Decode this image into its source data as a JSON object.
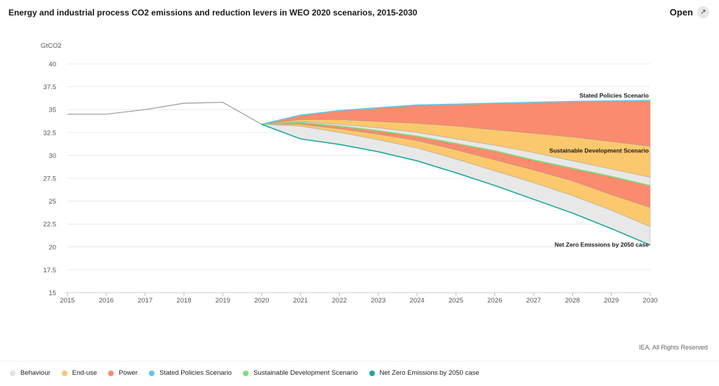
{
  "header": {
    "title": "Energy and industrial process CO2 emissions and reduction levers in WEO 2020 scenarios, 2015-2030",
    "open_label": "Open",
    "open_icon": "external-expand-icon"
  },
  "footer": {
    "copyright": "IEA. All Rights Reserved"
  },
  "chart_data": {
    "type": "area",
    "title": "Energy and industrial process CO2 emissions and reduction levers in WEO 2020 scenarios, 2015-2030",
    "ylabel": "GtCO2",
    "xlabel": "",
    "ylim": [
      15,
      40
    ],
    "yticks": [
      15,
      17.5,
      20,
      22.5,
      25,
      27.5,
      30,
      32.5,
      35,
      37.5,
      40
    ],
    "ytick_labels": [
      "15",
      "17.5",
      "20",
      "22.5",
      "25",
      "27.5",
      "30",
      "32.5",
      "35",
      "37.5",
      "40"
    ],
    "x": [
      2015,
      2016,
      2017,
      2018,
      2019,
      2020,
      2021,
      2022,
      2023,
      2024,
      2025,
      2026,
      2027,
      2028,
      2029,
      2030
    ],
    "x_labels": [
      "2015",
      "2016",
      "2017",
      "2018",
      "2019",
      "2020",
      "2021",
      "2022",
      "2023",
      "2024",
      "2025",
      "2026",
      "2027",
      "2028",
      "2029",
      "2030"
    ],
    "grid": true,
    "legend_position": "bottom",
    "historical": {
      "x": [
        2015,
        2016,
        2017,
        2018,
        2019,
        2020
      ],
      "values": [
        34.5,
        34.5,
        35.0,
        35.7,
        35.8,
        33.4
      ],
      "color": "#999999"
    },
    "series": [
      {
        "name": "Stated Policies Scenario",
        "kind": "line",
        "color": "#5bc8ec",
        "x": [
          2020,
          2021,
          2022,
          2023,
          2024,
          2025,
          2026,
          2027,
          2028,
          2029,
          2030
        ],
        "values": [
          33.4,
          34.4,
          34.9,
          35.2,
          35.5,
          35.6,
          35.7,
          35.8,
          35.9,
          35.95,
          36.0
        ]
      },
      {
        "name": "Sustainable Development Scenario",
        "kind": "line",
        "color": "#7be07b",
        "x": [
          2020,
          2021,
          2022,
          2023,
          2024,
          2025,
          2026,
          2027,
          2028,
          2029,
          2030
        ],
        "values": [
          33.4,
          33.6,
          33.2,
          32.7,
          32.1,
          31.3,
          30.5,
          29.5,
          28.6,
          27.7,
          26.7
        ]
      },
      {
        "name": "Net Zero Emissions by 2050 case",
        "kind": "line",
        "color": "#1aab9b",
        "x": [
          2020,
          2021,
          2022,
          2023,
          2024,
          2025,
          2026,
          2027,
          2028,
          2029,
          2030
        ],
        "values": [
          33.4,
          31.8,
          31.2,
          30.4,
          29.4,
          28.1,
          26.7,
          25.2,
          23.7,
          22.0,
          20.2
        ]
      },
      {
        "name": "Power",
        "kind": "area",
        "color": "#fa8b6e",
        "x": [
          2020,
          2021,
          2022,
          2023,
          2024,
          2025,
          2026,
          2027,
          2028,
          2029,
          2030
        ],
        "upper": [
          33.4,
          34.4,
          34.9,
          35.2,
          35.5,
          35.6,
          35.7,
          35.8,
          35.9,
          35.95,
          36.0
        ],
        "lower": [
          33.4,
          33.9,
          33.9,
          33.7,
          33.5,
          33.2,
          32.8,
          32.4,
          32.0,
          31.5,
          31.0
        ]
      },
      {
        "name": "End-use",
        "kind": "area",
        "color": "#fcc86e",
        "x": [
          2020,
          2021,
          2022,
          2023,
          2024,
          2025,
          2026,
          2027,
          2028,
          2029,
          2030
        ],
        "upper": [
          33.4,
          33.9,
          33.9,
          33.7,
          33.5,
          33.2,
          32.8,
          32.4,
          32.0,
          31.5,
          31.0
        ],
        "lower": [
          33.4,
          33.7,
          33.4,
          33.0,
          32.5,
          31.8,
          31.1,
          30.3,
          29.4,
          28.5,
          27.6
        ]
      },
      {
        "name": "Behaviour",
        "kind": "area",
        "color": "#e8e8e8",
        "x": [
          2020,
          2021,
          2022,
          2023,
          2024,
          2025,
          2026,
          2027,
          2028,
          2029,
          2030
        ],
        "upper": [
          33.4,
          33.7,
          33.4,
          33.0,
          32.5,
          31.8,
          31.1,
          30.3,
          29.4,
          28.5,
          27.6
        ],
        "lower": [
          33.4,
          33.6,
          33.2,
          32.7,
          32.1,
          31.3,
          30.5,
          29.5,
          28.6,
          27.7,
          26.7
        ]
      },
      {
        "name": "Power",
        "kind": "area",
        "color": "#fa8b6e",
        "x": [
          2020,
          2021,
          2022,
          2023,
          2024,
          2025,
          2026,
          2027,
          2028,
          2029,
          2030
        ],
        "upper": [
          33.4,
          33.6,
          33.2,
          32.7,
          32.1,
          31.3,
          30.5,
          29.5,
          28.6,
          27.7,
          26.7
        ],
        "lower": [
          33.4,
          33.4,
          32.9,
          32.3,
          31.6,
          30.6,
          29.5,
          28.4,
          27.2,
          25.7,
          24.3
        ]
      },
      {
        "name": "End-use",
        "kind": "area",
        "color": "#fcc86e",
        "x": [
          2020,
          2021,
          2022,
          2023,
          2024,
          2025,
          2026,
          2027,
          2028,
          2029,
          2030
        ],
        "upper": [
          33.4,
          33.4,
          32.9,
          32.3,
          31.6,
          30.6,
          29.5,
          28.4,
          27.2,
          25.7,
          24.3
        ],
        "lower": [
          33.4,
          33.2,
          32.5,
          31.7,
          30.8,
          29.6,
          28.3,
          27.0,
          25.6,
          24.0,
          22.2
        ]
      },
      {
        "name": "Behaviour",
        "kind": "area",
        "color": "#e8e8e8",
        "x": [
          2020,
          2021,
          2022,
          2023,
          2024,
          2025,
          2026,
          2027,
          2028,
          2029,
          2030
        ],
        "upper": [
          33.4,
          33.2,
          32.5,
          31.7,
          30.8,
          29.6,
          28.3,
          27.0,
          25.6,
          24.0,
          22.2
        ],
        "lower": [
          33.4,
          31.8,
          31.2,
          30.4,
          29.4,
          28.1,
          26.7,
          25.2,
          23.7,
          22.0,
          20.2
        ]
      }
    ],
    "annotations": [
      {
        "text": "Stated Policies Scenario",
        "x": 2030,
        "y": 36.0,
        "align": "right"
      },
      {
        "text": "Sustainable Development Scenario",
        "x": 2030,
        "y": 30.0,
        "align": "right"
      },
      {
        "text": "Net Zero Emissions by 2050 case",
        "x": 2030,
        "y": 19.7,
        "align": "right"
      }
    ],
    "legend": [
      {
        "label": "Behaviour",
        "color": "#e2e2e2"
      },
      {
        "label": "End-use",
        "color": "#fcc86e"
      },
      {
        "label": "Power",
        "color": "#fa8b6e"
      },
      {
        "label": "Stated Policies Scenario",
        "color": "#5bc8ec"
      },
      {
        "label": "Sustainable Development Scenario",
        "color": "#7be07b"
      },
      {
        "label": "Net Zero Emissions by 2050 case",
        "color": "#1aab9b"
      }
    ]
  }
}
